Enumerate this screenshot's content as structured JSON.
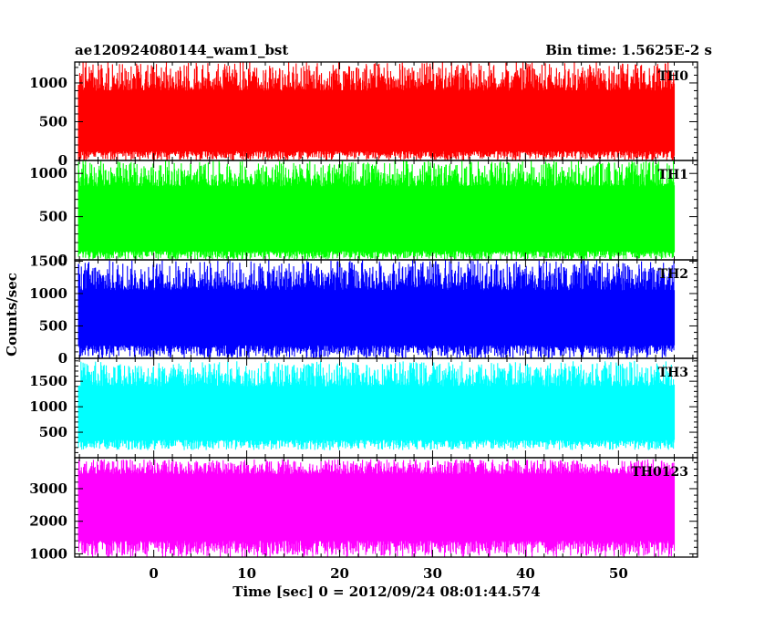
{
  "header": {
    "left_title": "ae120924080144_wam1_bst",
    "right_title": "Bin time: 1.5625E-2 s"
  },
  "chart_data": {
    "type": "line",
    "xlabel": "Time [sec] 0 = 2012/09/24 08:01:44.574",
    "ylabel": "Counts/sec",
    "xlim": [
      -8.5,
      58.5
    ],
    "x_range_data": [
      -8.1,
      56.0
    ],
    "x_ticks": [
      0,
      10,
      20,
      30,
      40,
      50
    ],
    "x_tick_labels": [
      "0",
      "10",
      "20",
      "30",
      "40",
      "50"
    ],
    "grid": false,
    "panels": [
      {
        "name": "TH0",
        "color": "#ff0000",
        "ylim": [
          0,
          1270
        ],
        "y_ticks": [
          0,
          500,
          1000
        ],
        "y_tick_labels": [
          "0",
          "500",
          "1000"
        ],
        "mean": 510,
        "band_low": 120,
        "band_high": 900,
        "min": 0,
        "max": 1270
      },
      {
        "name": "TH1",
        "color": "#00ff00",
        "ylim": [
          0,
          1150
        ],
        "y_ticks": [
          0,
          500,
          1000
        ],
        "y_tick_labels": [
          "0",
          "500",
          "1000"
        ],
        "mean": 470,
        "band_low": 100,
        "band_high": 850,
        "min": 0,
        "max": 1150
      },
      {
        "name": "TH2",
        "color": "#0000ff",
        "ylim": [
          0,
          1520
        ],
        "y_ticks": [
          0,
          500,
          1000,
          1500
        ],
        "y_tick_labels": [
          "0",
          "500",
          "1000",
          "1500"
        ],
        "mean": 640,
        "band_low": 200,
        "band_high": 1050,
        "min": 0,
        "max": 1520
      },
      {
        "name": "TH3",
        "color": "#00ffff",
        "ylim": [
          0,
          1950
        ],
        "y_ticks": [
          500,
          1000,
          1500
        ],
        "y_tick_labels": [
          "500",
          "1000",
          "1500"
        ],
        "mean": 880,
        "band_low": 350,
        "band_high": 1400,
        "min": 150,
        "max": 1900
      },
      {
        "name": "TH0123",
        "color": "#ff00ff",
        "ylim": [
          900,
          3950
        ],
        "y_ticks": [
          1000,
          2000,
          3000
        ],
        "y_tick_labels": [
          "1000",
          "2000",
          "3000"
        ],
        "mean": 2480,
        "band_low": 1400,
        "band_high": 3450,
        "min": 900,
        "max": 3900
      }
    ]
  }
}
